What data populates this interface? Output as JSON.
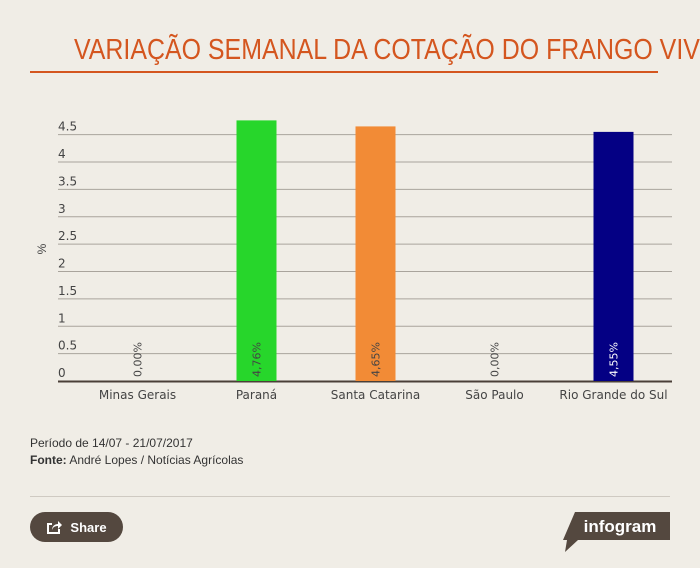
{
  "title": "VARIAÇÃO SEMANAL DA COTAÇÃO DO FRANGO VIVO",
  "chart_data": {
    "type": "bar",
    "title": "VARIAÇÃO SEMANAL DA COTAÇÃO DO FRANGO VIVO",
    "categories": [
      "Minas Gerais",
      "Paraná",
      "Santa Catarina",
      "São Paulo",
      "Rio Grande do Sul"
    ],
    "values": [
      0.0,
      4.76,
      4.65,
      0.0,
      4.55
    ],
    "data_labels": [
      "0,00%",
      "4,76%",
      "4,65%",
      "0,00%",
      "4,55%"
    ],
    "colors": [
      "#27d62b",
      "#27d62b",
      "#f28b36",
      "#27d62b",
      "#040084"
    ],
    "xlabel": "",
    "ylabel": "%",
    "ylim": [
      0,
      4.5
    ],
    "yticks": [
      "0",
      "0.5",
      "1",
      "1.5",
      "2",
      "2.5",
      "3",
      "3.5",
      "4",
      "4.5"
    ],
    "grid": true
  },
  "notes": {
    "period": "Período de 14/07 - 21/07/2017",
    "source_label": "Fonte:",
    "source_text": " André Lopes / Notícias Agrícolas"
  },
  "share_label": "Share",
  "brand": "infogram"
}
